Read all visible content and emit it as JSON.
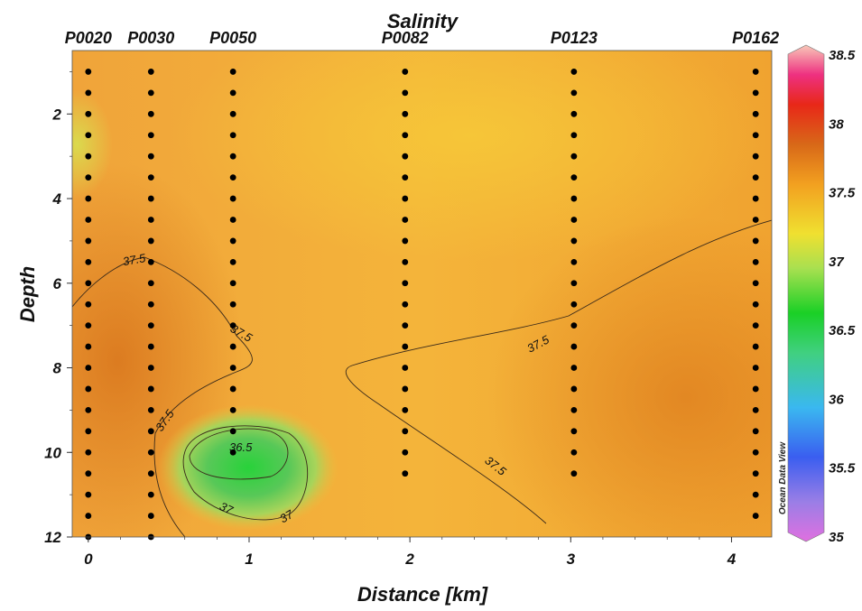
{
  "chart_data": {
    "type": "heatmap",
    "title": "Salinity",
    "xlabel": "Distance [km]",
    "ylabel": "Depth",
    "xlim": [
      -0.1,
      4.25
    ],
    "ylim": [
      12,
      0.5
    ],
    "xticks": [
      0,
      1,
      2,
      3,
      4
    ],
    "yticks": [
      2,
      4,
      6,
      8,
      10,
      12
    ],
    "stations": [
      {
        "name": "P0020",
        "x": 0.0,
        "depths": [
          1,
          1.5,
          2,
          2.5,
          3,
          3.5,
          4,
          4.5,
          5,
          5.5,
          6,
          6.5,
          7,
          7.5,
          8,
          8.5,
          9,
          9.5,
          10,
          10.5,
          11,
          11.5,
          12
        ]
      },
      {
        "name": "P0030",
        "x": 0.39,
        "depths": [
          1,
          1.5,
          2,
          2.5,
          3,
          3.5,
          4,
          4.5,
          5,
          5.5,
          6,
          6.5,
          7,
          7.5,
          8,
          8.5,
          9,
          9.5,
          10,
          10.5,
          11,
          11.5,
          12
        ]
      },
      {
        "name": "P0050",
        "x": 0.9,
        "depths": [
          1,
          1.5,
          2,
          2.5,
          3,
          3.5,
          4,
          4.5,
          5,
          5.5,
          6,
          6.5,
          7,
          7.5,
          8,
          8.5,
          9,
          9.5,
          10
        ]
      },
      {
        "name": "P0082",
        "x": 1.97,
        "depths": [
          1,
          1.5,
          2,
          2.5,
          3,
          3.5,
          4,
          4.5,
          5,
          5.5,
          6,
          6.5,
          7,
          7.5,
          8,
          8.5,
          9,
          9.5,
          10,
          10.5
        ]
      },
      {
        "name": "P0123",
        "x": 3.02,
        "depths": [
          1,
          1.5,
          2,
          2.5,
          3,
          3.5,
          4,
          4.5,
          5,
          5.5,
          6,
          6.5,
          7,
          7.5,
          8,
          8.5,
          9,
          9.5,
          10,
          10.5
        ]
      },
      {
        "name": "P0162",
        "x": 4.15,
        "depths": [
          1,
          1.5,
          2,
          2.5,
          3,
          3.5,
          4,
          4.5,
          5,
          5.5,
          6,
          6.5,
          7,
          7.5,
          8,
          8.5,
          9,
          9.5,
          10,
          10.5,
          11,
          11.5
        ]
      }
    ],
    "colorbar": {
      "min": 35,
      "max": 38.5,
      "ticks": [
        "38.5",
        "38",
        "37.5",
        "37",
        "36.5",
        "36",
        "35.5",
        "35"
      ],
      "label": "Ocean Data View"
    },
    "contour_labels": [
      "37.5",
      "37.5",
      "37.5",
      "37.5",
      "37.5",
      "36.5",
      "37",
      "37"
    ]
  }
}
